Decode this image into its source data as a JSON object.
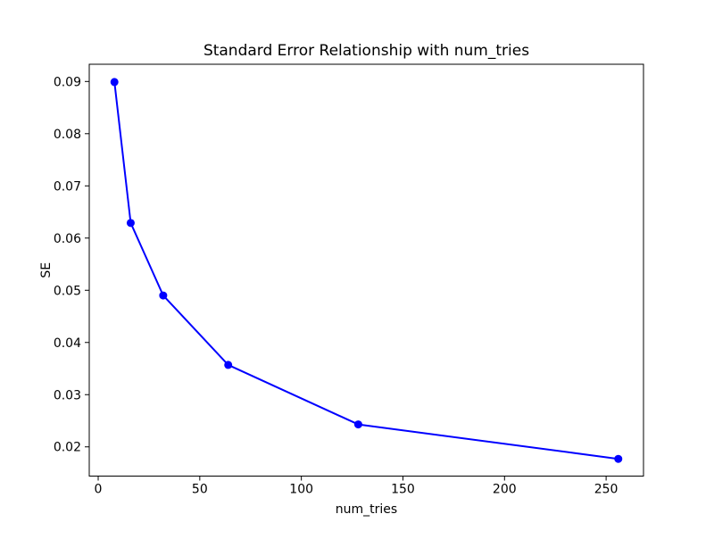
{
  "figure": {
    "background": "#ffffff",
    "text_color": "#000000",
    "spine_color": "#000000"
  },
  "chart_data": {
    "type": "line",
    "title": "Standard Error Relationship with num_tries",
    "xlabel": "num_tries",
    "ylabel": "SE",
    "x": [
      8,
      16,
      32,
      64,
      128,
      256
    ],
    "y": [
      0.0899,
      0.0629,
      0.049,
      0.0357,
      0.0243,
      0.0177
    ],
    "line_color": "#0000ff",
    "marker": "o",
    "marker_color": "#0000ff",
    "xlim": [
      -4.4,
      268.4
    ],
    "ylim": [
      0.0144,
      0.0933
    ],
    "xticks": [
      0,
      50,
      100,
      150,
      200,
      250
    ],
    "xtick_labels": [
      "0",
      "50",
      "100",
      "150",
      "200",
      "250"
    ],
    "yticks": [
      0.02,
      0.03,
      0.04,
      0.05,
      0.06,
      0.07,
      0.08,
      0.09
    ],
    "ytick_labels": [
      "0.02",
      "0.03",
      "0.04",
      "0.05",
      "0.06",
      "0.07",
      "0.08",
      "0.09"
    ],
    "grid": false,
    "legend": null
  }
}
